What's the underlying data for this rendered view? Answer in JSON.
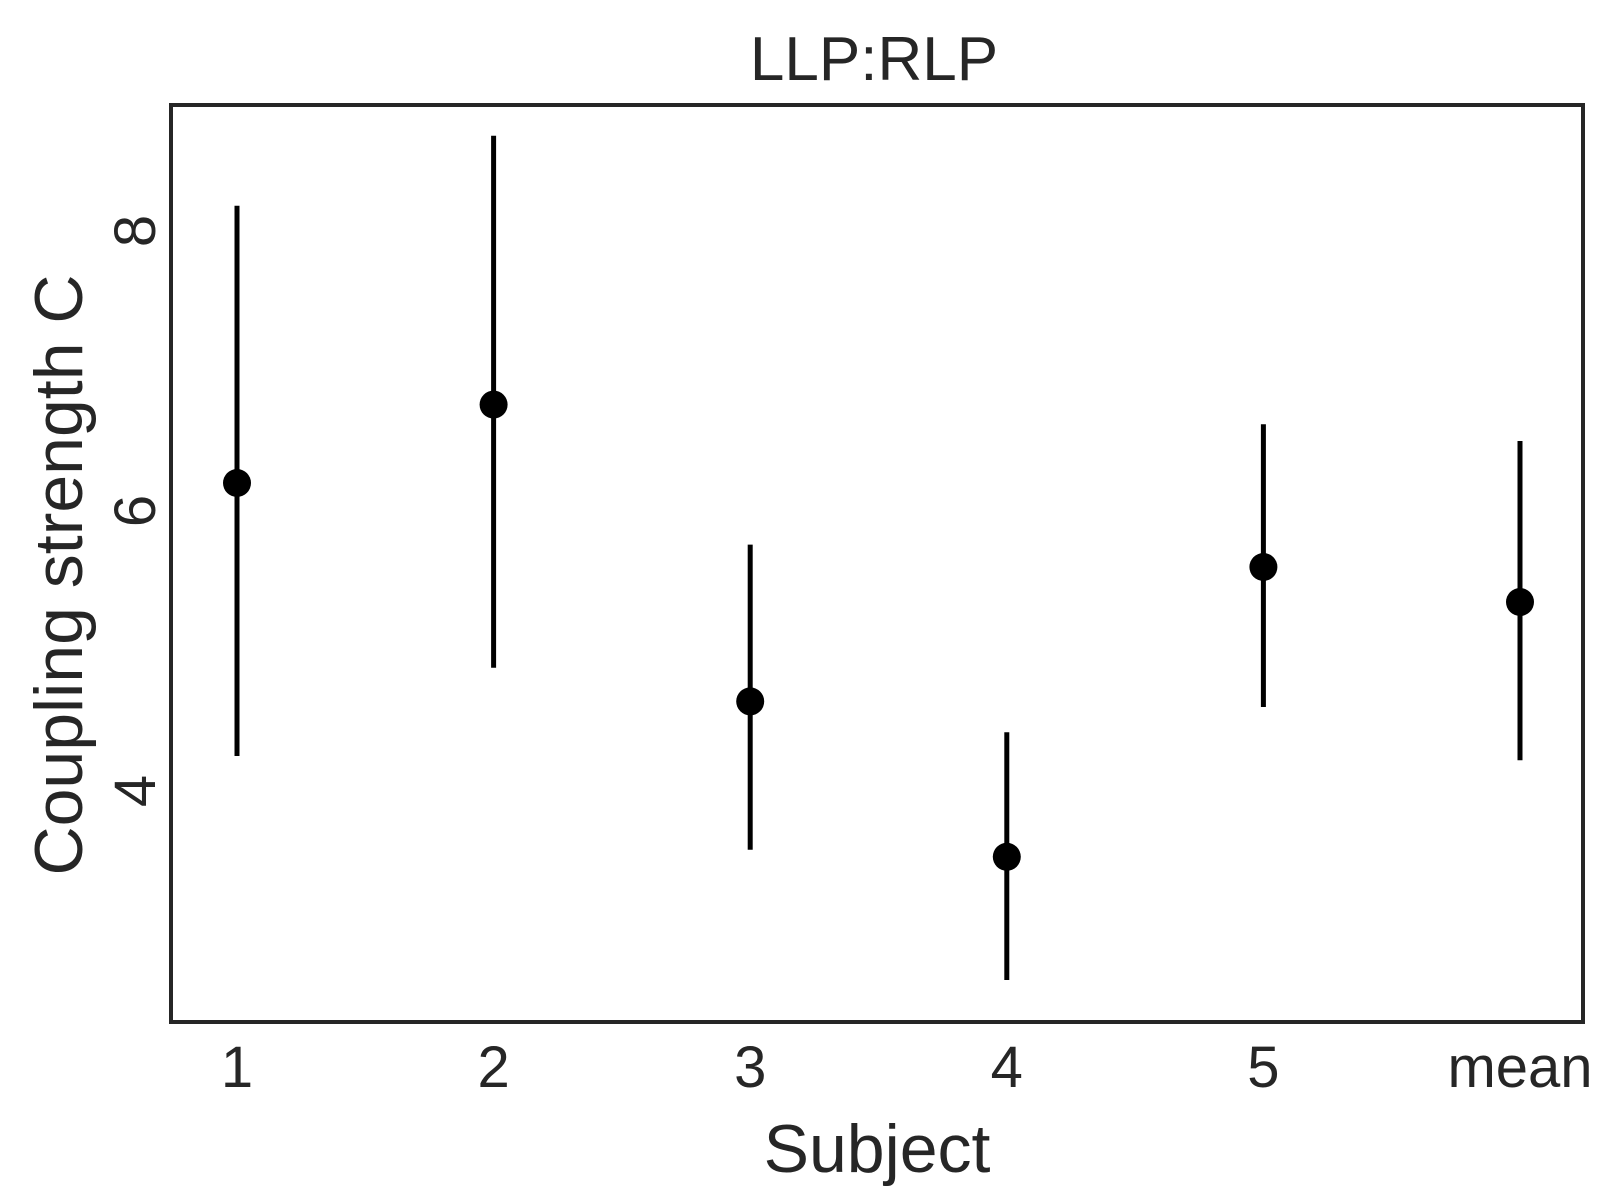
{
  "chart_data": {
    "type": "scatter",
    "title": "LLP:RLP",
    "xlabel": "Subject",
    "ylabel": "Coupling strength C",
    "categories": [
      "1",
      "2",
      "3",
      "4",
      "5",
      "mean"
    ],
    "series": [
      {
        "values": [
          6.2,
          6.76,
          4.64,
          3.53,
          5.6,
          5.35
        ],
        "error_low": [
          4.25,
          4.88,
          3.58,
          2.65,
          4.6,
          4.22
        ],
        "error_high": [
          8.18,
          8.68,
          5.76,
          4.42,
          6.62,
          6.5
        ]
      }
    ],
    "yticks": [
      4,
      6,
      8
    ],
    "ylim": [
      2.35,
      8.9
    ],
    "grid": false,
    "legend": false,
    "colors": {
      "marker": "#000000",
      "frame": "#262626",
      "text": "#262626"
    }
  }
}
